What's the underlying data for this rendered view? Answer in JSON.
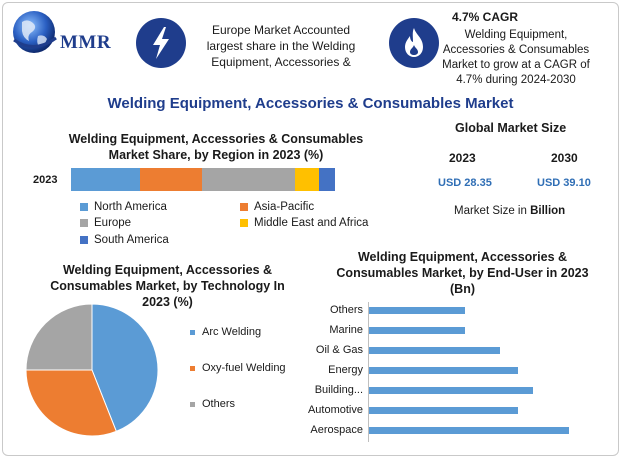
{
  "header": {
    "logo_text": "MMR",
    "europe_text": "Europe Market Accounted largest share in the Welding Equipment, Accessories &",
    "cagr_title": "4.7% CAGR",
    "cagr_text": "Welding Equipment, Accessories & Consumables Market to grow at a CAGR of 4.7% during 2024-2030",
    "icons": [
      "globe-icon",
      "lightning-icon",
      "flame-icon"
    ]
  },
  "main_title": "Welding Equipment, Accessories & Consumables Market",
  "global_size": {
    "title": "Global Market Size",
    "year1": "2023",
    "year2": "2030",
    "value1": "USD 28.35",
    "value2": "USD 39.10",
    "note_prefix": "Market Size in ",
    "note_unit": "Billion"
  },
  "colors": {
    "north_america": "#5b9bd5",
    "asia_pacific": "#ed7d31",
    "europe": "#a5a5a5",
    "middle_east_africa": "#ffc000",
    "south_america": "#4472c4",
    "brand_blue": "#1f3d8c",
    "value_blue": "#2f6eb5"
  },
  "chart_data": [
    {
      "type": "bar",
      "orientation": "horizontal-stacked",
      "title": "Welding Equipment, Accessories & Consumables Market Share, by Region in 2023 (%)",
      "categories": [
        "2023"
      ],
      "series": [
        {
          "name": "North America",
          "values": [
            26
          ]
        },
        {
          "name": "Asia-Pacific",
          "values": [
            23
          ]
        },
        {
          "name": "Europe",
          "values": [
            35
          ]
        },
        {
          "name": "Middle East and Africa",
          "values": [
            9
          ]
        },
        {
          "name": "South America",
          "values": [
            6
          ]
        }
      ],
      "legend": "bottom"
    },
    {
      "type": "pie",
      "title": "Welding Equipment, Accessories & Consumables Market, by Technology In 2023 (%)",
      "labels": [
        "Arc Welding",
        "Oxy-fuel Welding",
        "Others"
      ],
      "values": [
        44,
        31,
        25
      ],
      "colors": [
        "#5b9bd5",
        "#ed7d31",
        "#a5a5a5"
      ],
      "legend": "right"
    },
    {
      "type": "bar",
      "orientation": "horizontal",
      "title": "Welding Equipment, Accessories & Consumables Market, by End-User in 2023 (Bn)",
      "categories": [
        "Others",
        "Marine",
        "Oil & Gas",
        "Energy",
        "Building...",
        "Automotive",
        "Aerospace"
      ],
      "values": [
        3.2,
        3.2,
        4.4,
        5.0,
        5.5,
        5.0,
        6.7
      ],
      "color": "#5b9bd5"
    }
  ]
}
